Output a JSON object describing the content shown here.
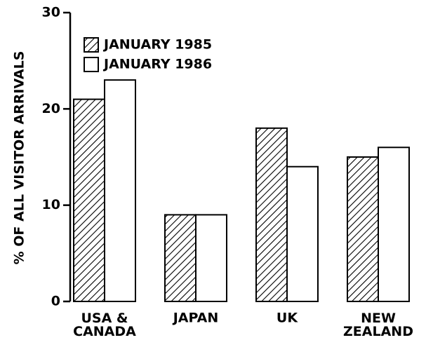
{
  "chart_data": {
    "type": "bar",
    "ylabel": "% OF ALL VISITOR ARRIVALS",
    "categories": [
      "USA &\nCANADA",
      "JAPAN",
      "UK",
      "NEW\nZEALAND"
    ],
    "series": [
      {
        "name": "JANUARY 1985",
        "color": "#000000",
        "pattern": "hatch",
        "values": [
          21,
          9,
          18,
          15
        ]
      },
      {
        "name": "JANUARY 1986",
        "color": "#ffffff",
        "pattern": "solid",
        "values": [
          23,
          9,
          14,
          16
        ]
      }
    ],
    "ylim": [
      0,
      30
    ],
    "yticks": [
      0,
      10,
      20,
      30
    ],
    "legend": "upper left"
  }
}
